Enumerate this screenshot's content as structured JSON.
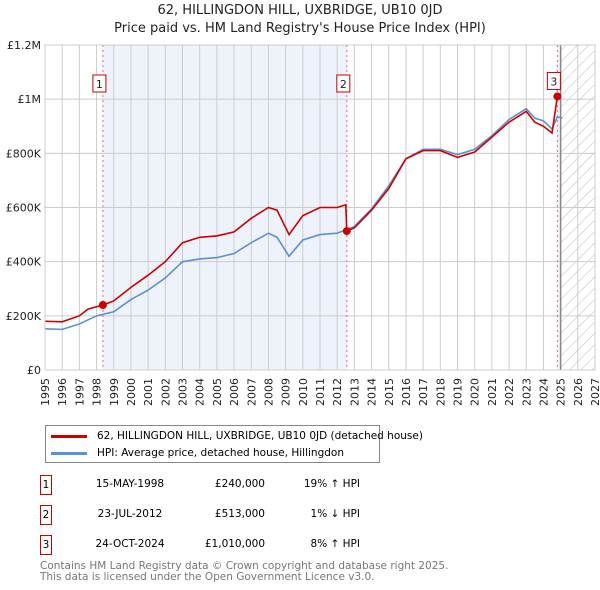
{
  "header": {
    "title": "62, HILLINGDON HILL, UXBRIDGE, UB10 0JD",
    "subtitle": "Price paid vs. HM Land Registry's House Price Index (HPI)"
  },
  "chart_data": {
    "type": "line",
    "title": "62, HILLINGDON HILL, UXBRIDGE, UB10 0JD",
    "xlim": [
      1995,
      2027
    ],
    "ylim": [
      0,
      1200000
    ],
    "x_ticks": [
      "1995",
      "1996",
      "1997",
      "1998",
      "1999",
      "2000",
      "2001",
      "2002",
      "2003",
      "2004",
      "2005",
      "2006",
      "2007",
      "2008",
      "2009",
      "2010",
      "2011",
      "2012",
      "2013",
      "2014",
      "2015",
      "2016",
      "2017",
      "2018",
      "2019",
      "2020",
      "2021",
      "2022",
      "2023",
      "2024",
      "2025",
      "2026",
      "2027"
    ],
    "y_ticks": [
      {
        "v": 0,
        "label": "£0"
      },
      {
        "v": 200000,
        "label": "£200K"
      },
      {
        "v": 400000,
        "label": "£400K"
      },
      {
        "v": 600000,
        "label": "£600K"
      },
      {
        "v": 800000,
        "label": "£800K"
      },
      {
        "v": 1000000,
        "label": "£1M"
      },
      {
        "v": 1200000,
        "label": "£1.2M"
      }
    ],
    "grid": true,
    "colors": {
      "property": "#cc0000",
      "hpi": "#5b8fd6",
      "shade": "#eef3fb",
      "marker": "#cc0000"
    },
    "series": [
      {
        "name": "62, HILLINGDON HILL, UXBRIDGE, UB10 0JD (detached house)",
        "x": [
          1995,
          1996,
          1997,
          1997.5,
          1998.37,
          1999,
          2000,
          2001,
          2002,
          2003,
          2004,
          2005,
          2006,
          2007,
          2008,
          2008.5,
          2009.2,
          2010,
          2011,
          2012,
          2012.5,
          2012.56,
          2013,
          2014,
          2015,
          2016,
          2017,
          2018,
          2019,
          2020,
          2021,
          2022,
          2023,
          2023.5,
          2024,
          2024.5,
          2024.81
        ],
        "y": [
          180000,
          178000,
          200000,
          225000,
          240000,
          255000,
          305000,
          350000,
          400000,
          470000,
          490000,
          495000,
          510000,
          560000,
          600000,
          590000,
          500000,
          570000,
          600000,
          600000,
          610000,
          513000,
          525000,
          590000,
          670000,
          780000,
          810000,
          810000,
          785000,
          805000,
          860000,
          915000,
          955000,
          915000,
          900000,
          875000,
          1010000
        ]
      },
      {
        "name": "HPI: Average price, detached house, Hillingdon",
        "x": [
          1995,
          1996,
          1997,
          1998,
          1999,
          2000,
          2001,
          2002,
          2003,
          2004,
          2005,
          2006,
          2007,
          2008,
          2008.5,
          2009.2,
          2010,
          2011,
          2012,
          2013,
          2014,
          2015,
          2016,
          2017,
          2018,
          2019,
          2020,
          2021,
          2022,
          2023,
          2023.5,
          2024,
          2024.5,
          2024.81,
          2025.1
        ],
        "y": [
          152000,
          150000,
          170000,
          200000,
          215000,
          260000,
          295000,
          340000,
          400000,
          410000,
          415000,
          430000,
          470000,
          505000,
          490000,
          420000,
          480000,
          500000,
          505000,
          530000,
          595000,
          680000,
          780000,
          815000,
          815000,
          795000,
          815000,
          865000,
          925000,
          965000,
          930000,
          920000,
          890000,
          935000,
          930000
        ]
      }
    ],
    "sales": [
      {
        "id": "1",
        "x": 1998.37,
        "y": 240000
      },
      {
        "id": "2",
        "x": 2012.56,
        "y": 513000
      },
      {
        "id": "3",
        "x": 2024.81,
        "y": 1010000
      }
    ],
    "hatched_from": 2025
  },
  "legend": {
    "items": [
      {
        "label": "62, HILLINGDON HILL, UXBRIDGE, UB10 0JD (detached house)"
      },
      {
        "label": "HPI: Average price, detached house, Hillingdon"
      }
    ]
  },
  "table": [
    {
      "id": "1",
      "date": "15-MAY-1998",
      "price": "£240,000",
      "hpi": "19% ↑ HPI"
    },
    {
      "id": "2",
      "date": "23-JUL-2012",
      "price": "£513,000",
      "hpi": "1% ↓ HPI"
    },
    {
      "id": "3",
      "date": "24-OCT-2024",
      "price": "£1,010,000",
      "hpi": "8% ↑ HPI"
    }
  ],
  "footer": {
    "line1": "Contains HM Land Registry data © Crown copyright and database right 2025.",
    "line2": "This data is licensed under the Open Government Licence v3.0."
  }
}
